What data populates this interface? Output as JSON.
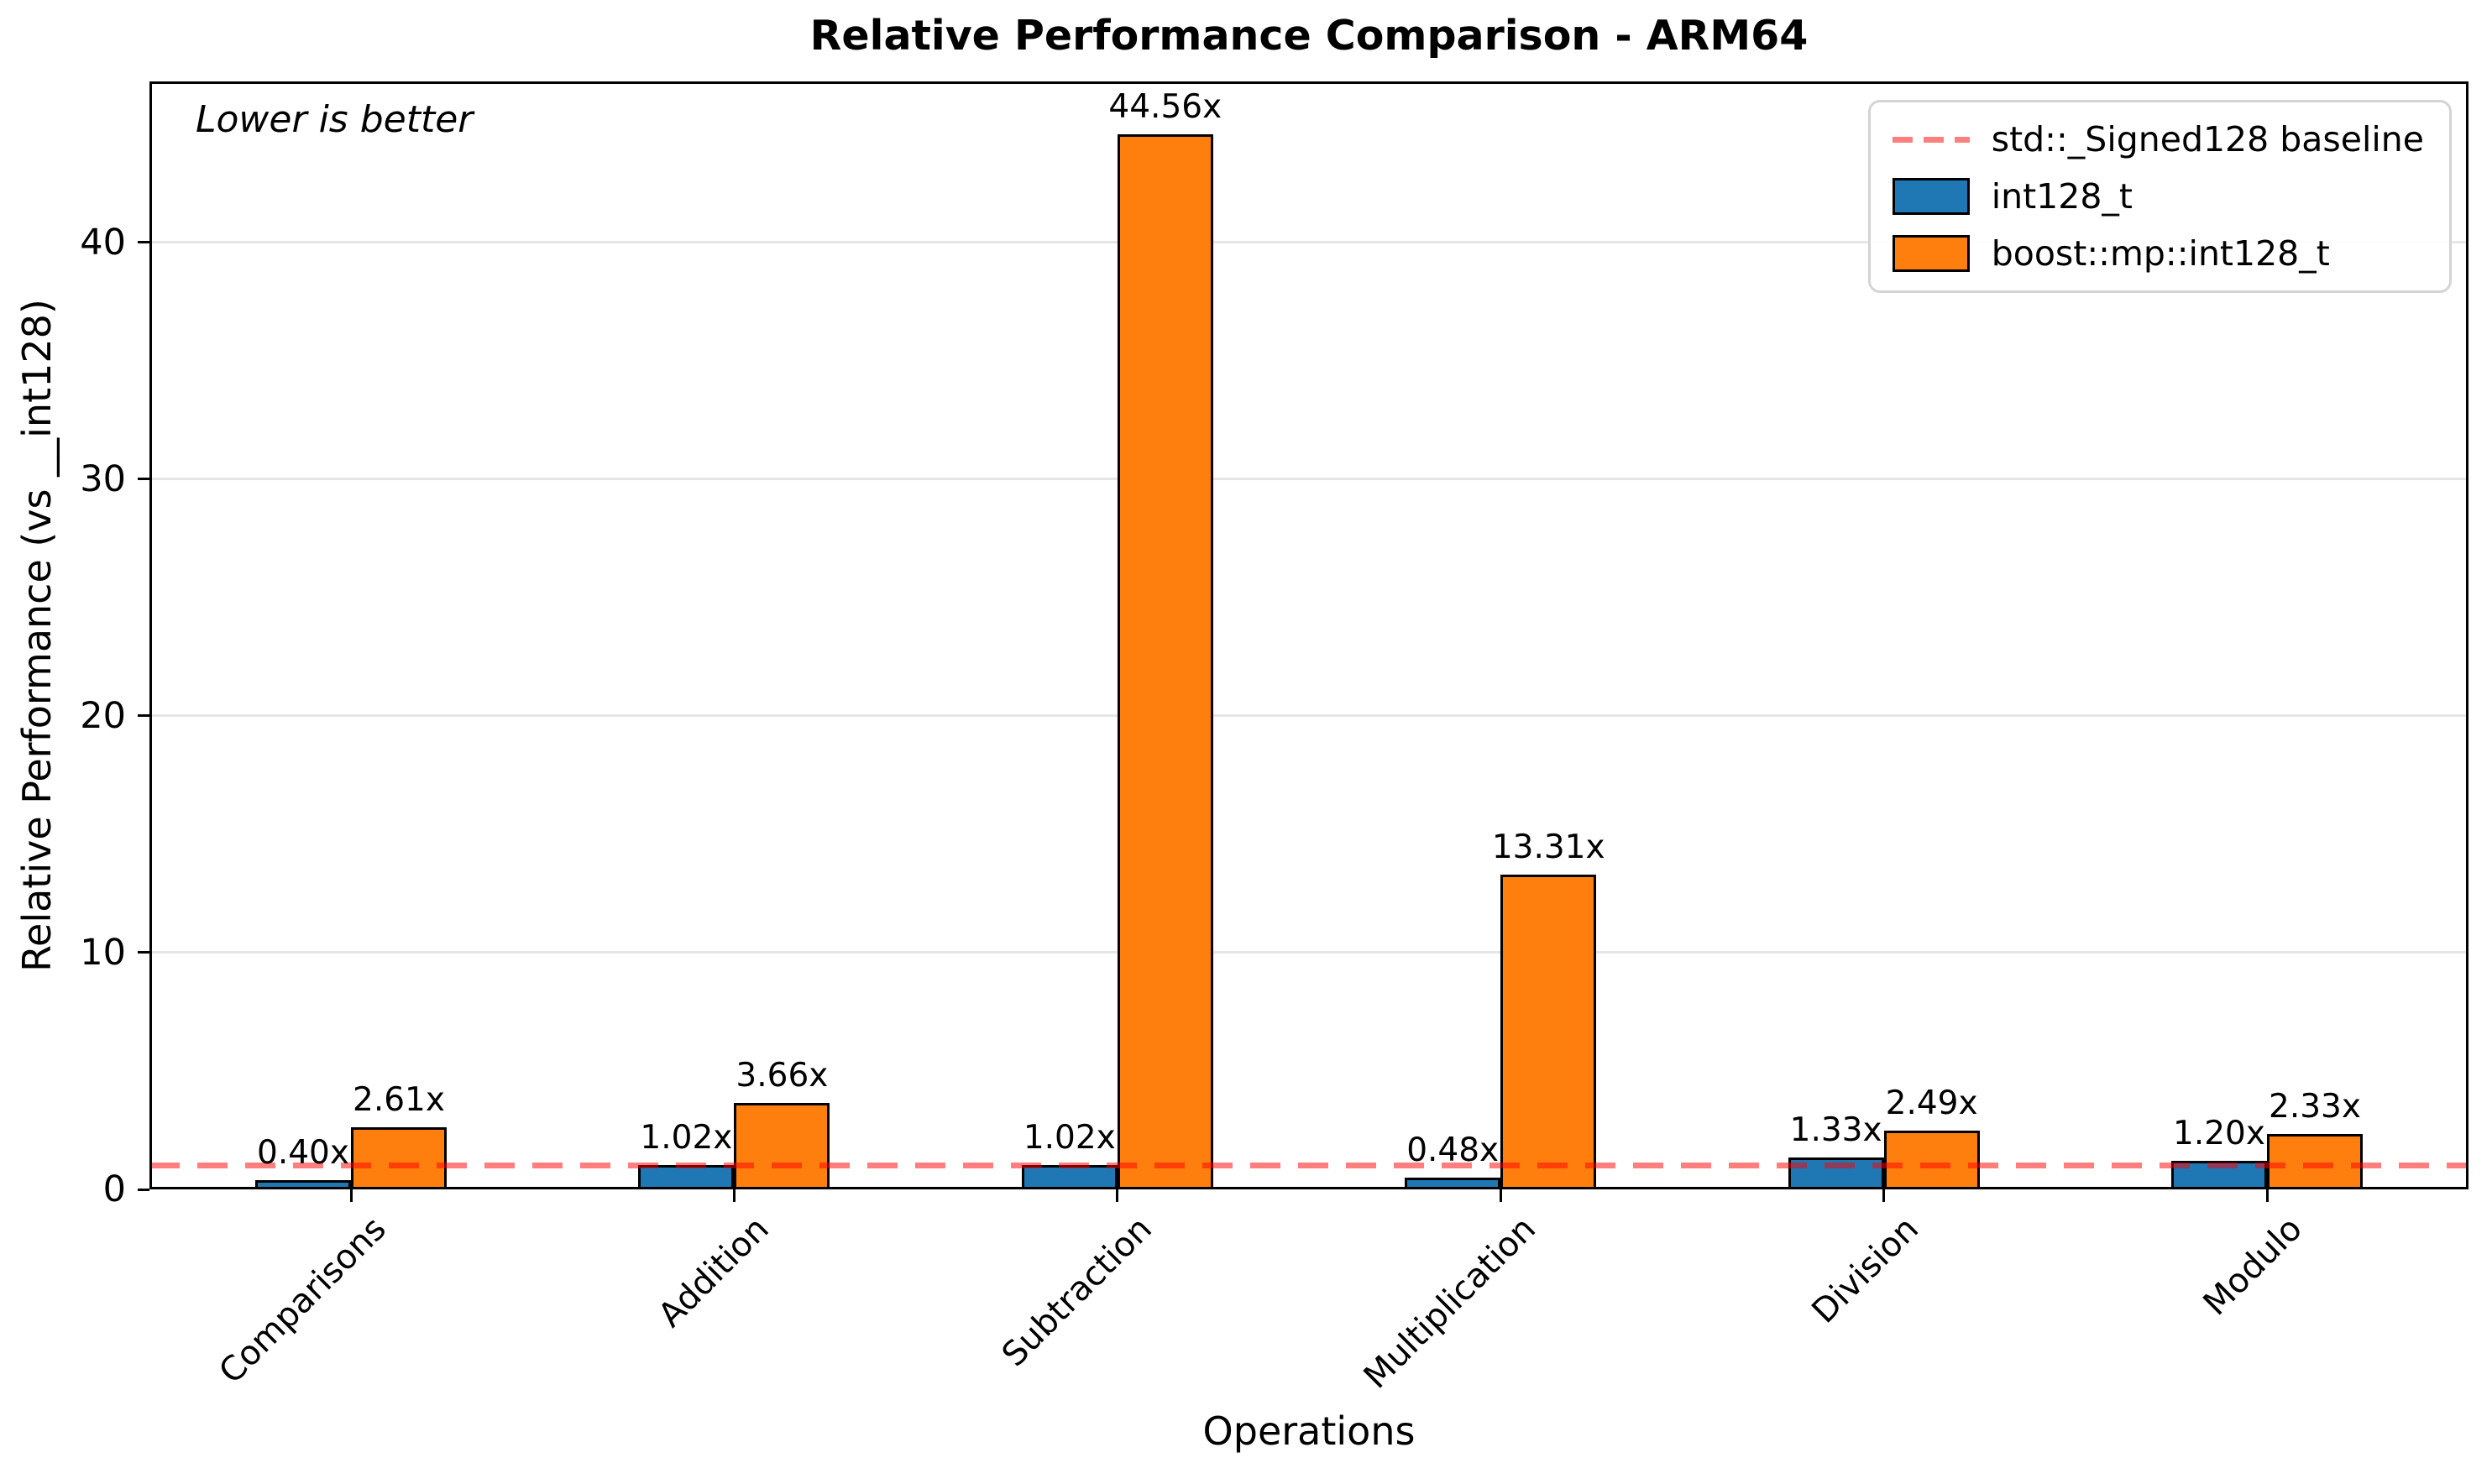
{
  "chart_data": {
    "type": "bar",
    "title": "Relative Performance Comparison - ARM64",
    "xlabel": "Operations",
    "ylabel": "Relative Performance (vs __int128)",
    "annotation": "Lower is better",
    "categories": [
      "Comparisons",
      "Addition",
      "Subtraction",
      "Multiplication",
      "Division",
      "Modulo"
    ],
    "series": [
      {
        "name": "int128_t",
        "color": "#1f77b4",
        "values": [
          0.4,
          1.02,
          1.02,
          0.48,
          1.33,
          1.2
        ],
        "value_labels": [
          "0.40x",
          "1.02x",
          "1.02x",
          "0.48x",
          "1.33x",
          "1.20x"
        ]
      },
      {
        "name": "boost::mp::int128_t",
        "color": "#ff7f0e",
        "values": [
          2.61,
          3.66,
          44.56,
          13.31,
          2.49,
          2.33
        ],
        "value_labels": [
          "2.61x",
          "3.66x",
          "44.56x",
          "13.31x",
          "2.49x",
          "2.33x"
        ]
      }
    ],
    "baseline": {
      "value": 1,
      "label": "std::_Signed128 baseline",
      "color": "rgba(255,0,0,0.5)"
    },
    "yticks": [
      0,
      10,
      20,
      30,
      40
    ],
    "ylim": [
      0,
      46.8
    ],
    "grid": true,
    "legend_position": "upper right"
  }
}
